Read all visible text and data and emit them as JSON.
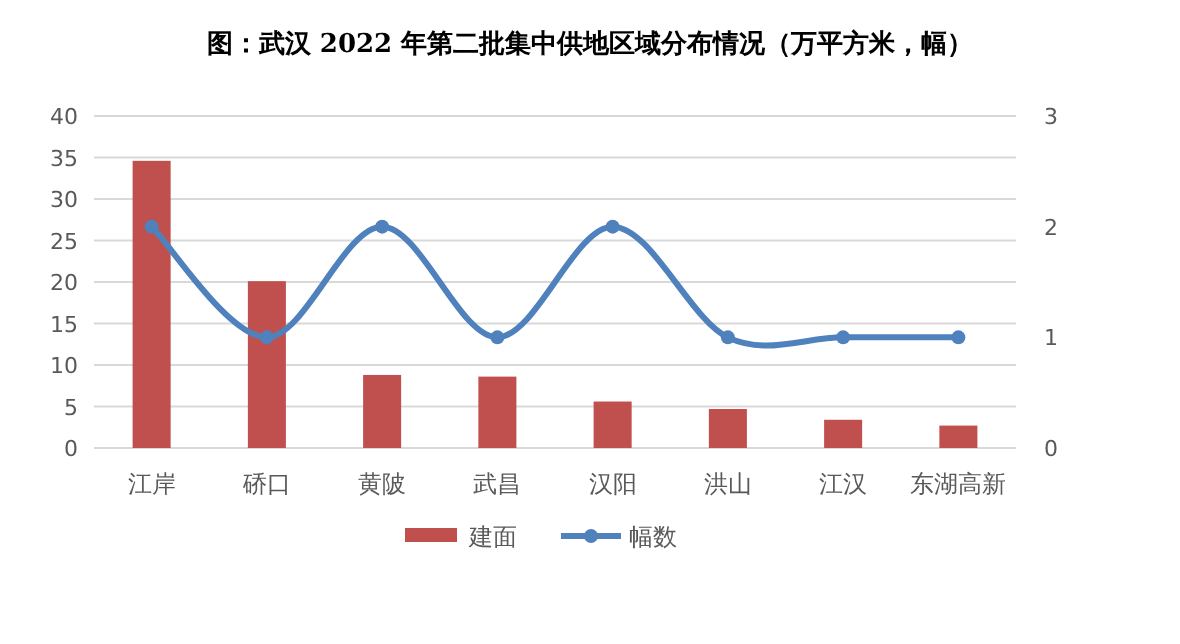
{
  "chart_data": {
    "type": "bar",
    "title": "图：武汉 2022 年第二批集中供地区域分布情况（万平方米，幅）",
    "categories": [
      "江岸",
      "硚口",
      "黄陂",
      "武昌",
      "汉阳",
      "洪山",
      "江汉",
      "东湖高新"
    ],
    "series": [
      {
        "name": "建面",
        "color": "#c0504d",
        "values": [
          34.6,
          20.1,
          8.8,
          8.6,
          5.6,
          4.7,
          3.4,
          2.7
        ]
      },
      {
        "name": "幅数",
        "type": "line",
        "axis": "y2",
        "color": "#4f81bd",
        "marker": "circle",
        "values": [
          2,
          1,
          2,
          1,
          2,
          1,
          1,
          1
        ]
      }
    ],
    "ylim": [
      0,
      40
    ],
    "yticks": [
      0,
      5,
      10,
      15,
      20,
      25,
      30,
      35,
      40
    ],
    "y2lim": [
      0,
      3
    ],
    "y2ticks": [
      0,
      1,
      2,
      3
    ],
    "grid": "y",
    "legend": "bottom"
  }
}
